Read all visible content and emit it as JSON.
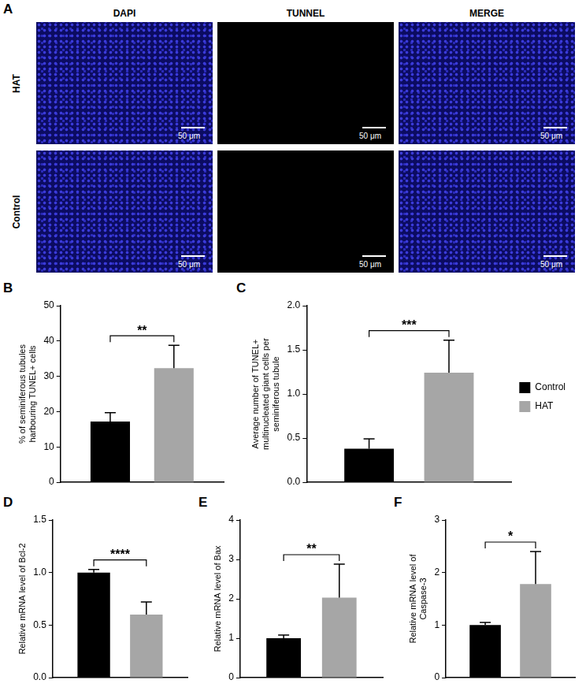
{
  "panel_a": {
    "panel_label": "A",
    "columns": [
      "DAPI",
      "TUNNEL",
      "MERGE"
    ],
    "rows": [
      "HAT",
      "Control"
    ],
    "scale_bar": "50 μm"
  },
  "chart_data": [
    {
      "panel_label": "B",
      "type": "bar",
      "categories": [
        null
      ],
      "y_label": "% of seminiferous tubules harbouring TUNEL+ cells",
      "ylim": [
        0,
        50
      ],
      "yticks": [
        0,
        10,
        20,
        30,
        40,
        50
      ],
      "grid": false,
      "tick_labels": "y",
      "series": [
        {
          "name": "Control",
          "color": "#000000",
          "values": [
            17.2
          ],
          "errors": [
            2.5
          ]
        },
        {
          "name": "HAT",
          "color": "#a6a6a6",
          "values": [
            32.3
          ],
          "errors": [
            6.5
          ]
        }
      ],
      "significance": "**"
    },
    {
      "panel_label": "C",
      "type": "bar",
      "categories": [
        null
      ],
      "y_label": "Average number of TUNEL+ multinucleated giant cells per seminiferous tubule",
      "ylim": [
        0,
        2
      ],
      "yticks": [
        {
          "value": 0,
          "label": "0.0"
        },
        {
          "value": 0.5,
          "label": "0.5"
        },
        {
          "value": 1,
          "label": "1.0"
        },
        {
          "value": 1.5,
          "label": "1.5"
        },
        {
          "value": 2,
          "label": "2.0"
        }
      ],
      "grid": false,
      "tick_labels": "y",
      "legend": "right",
      "series": [
        {
          "name": "Control",
          "color": "#000000",
          "values": [
            0.38
          ],
          "errors": [
            0.11
          ]
        },
        {
          "name": "HAT",
          "color": "#a6a6a6",
          "values": [
            1.24
          ],
          "errors": [
            0.37
          ]
        }
      ],
      "significance": "***"
    },
    {
      "panel_label": "D",
      "type": "bar",
      "categories": [
        null
      ],
      "y_label": "Relative mRNA level of Bcl-2",
      "ylim": [
        0,
        1.5
      ],
      "yticks": [
        {
          "value": 0,
          "label": "0.0"
        },
        {
          "value": 0.5,
          "label": "0.5"
        },
        {
          "value": 1,
          "label": "1.0"
        },
        {
          "value": 1.5,
          "label": "1.5"
        }
      ],
      "grid": false,
      "tick_labels": "y",
      "series": [
        {
          "name": "Control",
          "color": "#000000",
          "values": [
            1.0
          ],
          "errors": [
            0.03
          ]
        },
        {
          "name": "HAT",
          "color": "#a6a6a6",
          "values": [
            0.6
          ],
          "errors": [
            0.12
          ]
        }
      ],
      "significance": "****"
    },
    {
      "panel_label": "E",
      "type": "bar",
      "categories": [
        null
      ],
      "y_label": "Relative mRNA level of Bax",
      "ylim": [
        0,
        4
      ],
      "yticks": [
        0,
        1,
        2,
        3,
        4
      ],
      "grid": false,
      "tick_labels": "y",
      "series": [
        {
          "name": "Control",
          "color": "#000000",
          "values": [
            1.0
          ],
          "errors": [
            0.08
          ]
        },
        {
          "name": "HAT",
          "color": "#a6a6a6",
          "values": [
            2.03
          ],
          "errors": [
            0.85
          ]
        }
      ],
      "significance": "**"
    },
    {
      "panel_label": "F",
      "type": "bar",
      "categories": [
        null
      ],
      "y_label": "Relative mRNA level of Caspase-3",
      "ylim": [
        0,
        3
      ],
      "yticks": [
        0,
        1,
        2,
        3
      ],
      "grid": false,
      "tick_labels": "y",
      "series": [
        {
          "name": "Control",
          "color": "#000000",
          "values": [
            1.0
          ],
          "errors": [
            0.05
          ]
        },
        {
          "name": "HAT",
          "color": "#a6a6a6",
          "values": [
            1.78
          ],
          "errors": [
            0.62
          ]
        }
      ],
      "significance": "*"
    }
  ]
}
